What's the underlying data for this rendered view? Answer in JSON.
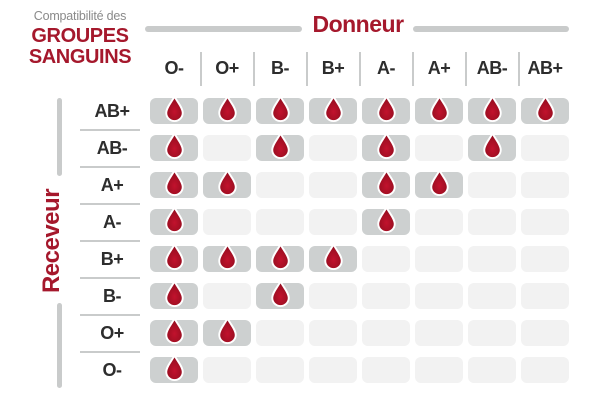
{
  "title": {
    "eyebrow": "Compatibilité des",
    "line1": "GROUPES",
    "line2": "SANGUINS"
  },
  "axes": {
    "donor_label": "Donneur",
    "receiver_label": "Receveur"
  },
  "chart_data": {
    "type": "heatmap",
    "title": "Compatibilité des groupes sanguins",
    "columns_axis_label": "Donneur",
    "rows_axis_label": "Receveur",
    "columns": [
      "O-",
      "O+",
      "B-",
      "B+",
      "A-",
      "A+",
      "AB-",
      "AB+"
    ],
    "rows": [
      "AB+",
      "AB-",
      "A+",
      "A-",
      "B+",
      "B-",
      "O+",
      "O-"
    ],
    "matrix": [
      [
        1,
        1,
        1,
        1,
        1,
        1,
        1,
        1
      ],
      [
        1,
        0,
        1,
        0,
        1,
        0,
        1,
        0
      ],
      [
        1,
        1,
        0,
        0,
        1,
        1,
        0,
        0
      ],
      [
        1,
        0,
        0,
        0,
        1,
        0,
        0,
        0
      ],
      [
        1,
        1,
        1,
        1,
        0,
        0,
        0,
        0
      ],
      [
        1,
        0,
        1,
        0,
        0,
        0,
        0,
        0
      ],
      [
        1,
        1,
        0,
        0,
        0,
        0,
        0,
        0
      ],
      [
        1,
        0,
        0,
        0,
        0,
        0,
        0,
        0
      ]
    ],
    "marker": "blood-drop",
    "legend_position": "none",
    "grid": "rounded-cells"
  },
  "colors": {
    "accent_red": "#a5182c",
    "drop_red": "#a50f24",
    "drop_center": "#c2122d",
    "drop_dark": "#8e0c1e",
    "cell_filled": "#cdd0d0",
    "cell_empty": "#f2f2f2",
    "line_gray": "#c9cbcb",
    "text_dark": "#2d2d2d",
    "text_gray": "#8a8a8a"
  }
}
